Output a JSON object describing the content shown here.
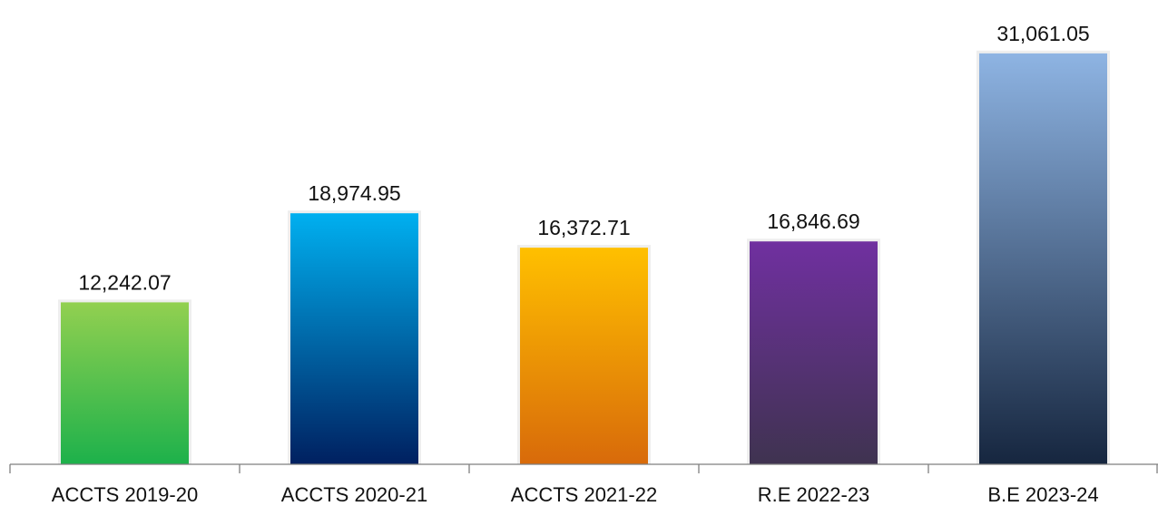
{
  "chart_data": {
    "type": "bar",
    "title": "",
    "xlabel": "",
    "ylabel": "",
    "categories": [
      "ACCTS 2019-20",
      "ACCTS 2020-21",
      "ACCTS 2021-22",
      "R.E 2022-23",
      "B.E 2023-24"
    ],
    "values": [
      12242.07,
      18974.95,
      16372.71,
      16846.69,
      31061.05
    ],
    "value_labels": [
      "12,242.07",
      "18,974.95",
      "16,372.71",
      "16,846.69",
      "31,061.05"
    ],
    "ylim": [
      0,
      34000
    ],
    "grid": false,
    "legend": "none",
    "bar_gradients": [
      [
        "#92d050",
        "#1db14b"
      ],
      [
        "#00b0f0",
        "#002060"
      ],
      [
        "#ffc000",
        "#d86a0a"
      ],
      [
        "#7030a0",
        "#3f3350"
      ],
      [
        "#8eb4e3",
        "#16263f"
      ]
    ]
  }
}
